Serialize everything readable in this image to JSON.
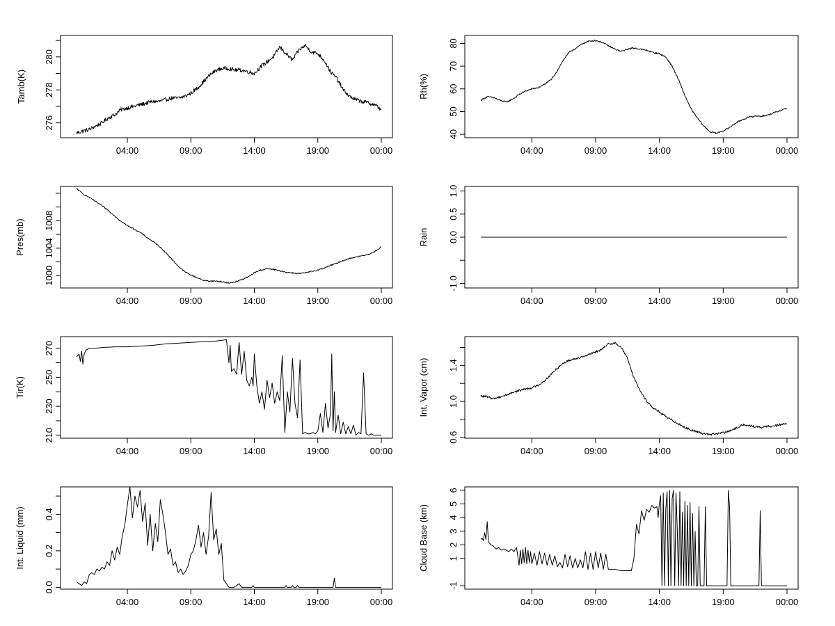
{
  "chart_data": [
    {
      "type": "line",
      "panel": "top-left",
      "ylabel": "Tamb(K)",
      "xlim": [
        0,
        24
      ],
      "ylim": [
        275.1,
        281.3
      ],
      "x_ticks": [
        4,
        9,
        14,
        19,
        24
      ],
      "x_tick_labels": [
        "04:00",
        "09:00",
        "14:00",
        "19:00",
        "00:00"
      ],
      "y_ticks": [
        276,
        277,
        278,
        279,
        280,
        281
      ],
      "y_tick_labels": [
        "276",
        "",
        "278",
        "",
        "280",
        ""
      ],
      "noise": 0.12,
      "x": [
        0,
        0.5,
        1,
        1.5,
        2,
        2.5,
        3,
        3.5,
        4,
        4.5,
        5,
        5.5,
        6,
        6.5,
        7,
        7.5,
        8,
        8.5,
        9,
        9.5,
        10,
        10.5,
        11,
        11.5,
        12,
        12.5,
        13,
        13.5,
        14,
        14.5,
        15,
        15.5,
        16,
        16.5,
        17,
        17.5,
        18,
        18.5,
        19,
        19.5,
        20,
        20.5,
        21,
        21.5,
        22,
        22.5,
        23,
        23.5,
        24
      ],
      "y": [
        275.4,
        275.5,
        275.6,
        275.8,
        276.0,
        276.3,
        276.5,
        276.8,
        276.9,
        277.0,
        277.1,
        277.2,
        277.3,
        277.3,
        277.4,
        277.5,
        277.5,
        277.6,
        277.8,
        278.1,
        278.5,
        278.9,
        279.2,
        279.3,
        279.3,
        279.2,
        279.2,
        279.1,
        279.0,
        279.4,
        279.7,
        280.0,
        280.6,
        280.2,
        279.8,
        280.4,
        280.7,
        280.3,
        280.2,
        279.8,
        279.1,
        278.7,
        278.0,
        277.6,
        277.4,
        277.3,
        277.2,
        277.1,
        276.8
      ]
    },
    {
      "type": "line",
      "panel": "top-right",
      "ylabel": "Rh(%)",
      "xlim": [
        0,
        24
      ],
      "ylim": [
        38.5,
        83.5
      ],
      "x_ticks": [
        4,
        9,
        14,
        19,
        24
      ],
      "x_tick_labels": [
        "04:00",
        "09:00",
        "14:00",
        "19:00",
        "00:00"
      ],
      "y_ticks": [
        40,
        50,
        60,
        70,
        80
      ],
      "y_tick_labels": [
        "40",
        "50",
        "60",
        "70",
        "80"
      ],
      "noise": 0.3,
      "x": [
        0,
        0.5,
        1,
        1.5,
        2,
        2.5,
        3,
        3.5,
        4,
        4.5,
        5,
        5.5,
        6,
        6.5,
        7,
        7.5,
        8,
        8.5,
        9,
        9.5,
        10,
        10.5,
        11,
        11.5,
        12,
        12.5,
        13,
        13.5,
        14,
        14.5,
        15,
        15.5,
        16,
        16.5,
        17,
        17.5,
        18,
        18.5,
        19,
        19.5,
        20,
        20.5,
        21,
        21.5,
        22,
        22.5,
        23,
        23.5,
        24
      ],
      "y": [
        55.0,
        56.5,
        56.2,
        55.0,
        54.2,
        55.5,
        57.5,
        59.0,
        60.0,
        60.5,
        62.0,
        64.0,
        68.0,
        73.0,
        76.5,
        78.0,
        80.0,
        81.0,
        81.3,
        80.5,
        79.0,
        77.5,
        76.5,
        77.5,
        78.0,
        77.5,
        77.0,
        76.0,
        75.5,
        74.0,
        70.0,
        64.0,
        57.0,
        51.0,
        47.0,
        43.5,
        41.0,
        40.5,
        41.5,
        43.0,
        45.0,
        46.5,
        47.5,
        48.0,
        48.0,
        48.5,
        49.5,
        50.5,
        51.5
      ]
    },
    {
      "type": "line",
      "panel": "middle-left-1",
      "ylabel": "Pres(mb)",
      "xlim": [
        0,
        24
      ],
      "ylim": [
        998.2,
        1013.0
      ],
      "x_ticks": [
        4,
        9,
        14,
        19,
        24
      ],
      "x_tick_labels": [
        "04:00",
        "09:00",
        "14:00",
        "19:00",
        "00:00"
      ],
      "y_ticks": [
        1000,
        1002,
        1004,
        1006,
        1008,
        1010,
        1012
      ],
      "y_tick_labels": [
        "1000",
        "",
        "1004",
        "",
        "1008",
        "",
        ""
      ],
      "noise": 0.08,
      "x": [
        0,
        0.5,
        1,
        1.5,
        2,
        2.5,
        3,
        3.5,
        4,
        4.5,
        5,
        5.5,
        6,
        6.5,
        7,
        7.5,
        8,
        8.5,
        9,
        9.5,
        10,
        10.5,
        11,
        11.5,
        12,
        12.5,
        13,
        13.5,
        14,
        14.5,
        15,
        15.5,
        16,
        16.5,
        17,
        17.5,
        18,
        18.5,
        19,
        19.5,
        20,
        20.5,
        21,
        21.5,
        22,
        22.5,
        23,
        23.5,
        24
      ],
      "y": [
        1012.7,
        1011.9,
        1011.4,
        1010.8,
        1010.2,
        1009.5,
        1008.7,
        1007.9,
        1007.3,
        1006.8,
        1006.3,
        1005.6,
        1005.0,
        1004.3,
        1003.4,
        1002.4,
        1001.4,
        1000.6,
        1000.1,
        999.7,
        999.3,
        999.2,
        999.2,
        999.1,
        998.9,
        999.1,
        999.4,
        999.8,
        1000.4,
        1000.8,
        1001.0,
        1000.9,
        1000.7,
        1000.5,
        1000.4,
        1000.3,
        1000.4,
        1000.6,
        1000.8,
        1001.1,
        1001.5,
        1001.8,
        1002.2,
        1002.5,
        1002.7,
        1002.9,
        1003.1,
        1003.5,
        1004.2
      ]
    },
    {
      "type": "line",
      "panel": "middle-right-1",
      "ylabel": "Rain",
      "xlim": [
        0,
        24
      ],
      "ylim": [
        -1.1,
        1.1
      ],
      "x_ticks": [
        4,
        9,
        14,
        19,
        24
      ],
      "x_tick_labels": [
        "04:00",
        "09:00",
        "14:00",
        "19:00",
        "00:00"
      ],
      "y_ticks": [
        -1.0,
        -0.5,
        0.0,
        0.5,
        1.0
      ],
      "y_tick_labels": [
        "-1.0",
        "",
        "0.0",
        "0.5",
        "1.0"
      ],
      "noise": 0,
      "x": [
        0,
        24
      ],
      "y": [
        0,
        0
      ]
    },
    {
      "type": "line",
      "panel": "middle-left-2",
      "ylabel": "Tir(K)",
      "xlim": [
        0,
        24
      ],
      "ylim": [
        208,
        278
      ],
      "x_ticks": [
        4,
        9,
        14,
        19,
        24
      ],
      "x_tick_labels": [
        "04:00",
        "09:00",
        "14:00",
        "19:00",
        "00:00"
      ],
      "y_ticks": [
        210,
        220,
        230,
        240,
        250,
        260,
        270
      ],
      "y_tick_labels": [
        "210",
        "",
        "230",
        "",
        "250",
        "",
        "270"
      ],
      "noise": 0,
      "x": [
        0,
        0.2,
        0.3,
        0.4,
        0.5,
        0.6,
        0.7,
        0.8,
        1.0,
        1.5,
        2,
        3,
        4,
        5,
        6,
        7,
        8,
        9,
        10,
        11,
        11.5,
        11.8,
        12.0,
        12.1,
        12.2,
        12.4,
        12.6,
        12.8,
        13.0,
        13.2,
        13.4,
        13.6,
        13.8,
        13.9,
        14.0,
        14.2,
        14.4,
        14.6,
        14.8,
        15.0,
        15.2,
        15.4,
        15.6,
        15.8,
        16.0,
        16.2,
        16.4,
        16.6,
        16.8,
        17.0,
        17.2,
        17.4,
        17.6,
        17.8,
        18.0,
        18.2,
        18.4,
        18.6,
        18.8,
        19.0,
        19.2,
        19.4,
        19.6,
        19.8,
        20.0,
        20.1,
        20.2,
        20.3,
        20.4,
        20.6,
        20.8,
        21.0,
        21.2,
        21.4,
        21.6,
        21.8,
        22.0,
        22.2,
        22.4,
        22.6,
        22.8,
        23.0,
        23.2,
        23.4,
        23.6,
        23.8,
        24.0
      ],
      "y": [
        264,
        266,
        261,
        268,
        259,
        266,
        268,
        269,
        270,
        270,
        270.5,
        271,
        271,
        271.5,
        272,
        273,
        273.5,
        274,
        274.5,
        275,
        275.5,
        276,
        260,
        272,
        254,
        256,
        252,
        274,
        252,
        268,
        248,
        244,
        250,
        244,
        266,
        244,
        232,
        240,
        228,
        248,
        236,
        246,
        232,
        240,
        234,
        265,
        212,
        240,
        226,
        263,
        232,
        222,
        262,
        211,
        212,
        211,
        211,
        212,
        211,
        213,
        225,
        212,
        232,
        215,
        225,
        266,
        213,
        240,
        212,
        224,
        211,
        219,
        211,
        216,
        211,
        217,
        210,
        212,
        211,
        253,
        211,
        210,
        211,
        210,
        210,
        210,
        210
      ]
    },
    {
      "type": "line",
      "panel": "middle-right-2",
      "ylabel": "Int. Vapor (cm)",
      "xlim": [
        0,
        24
      ],
      "ylim": [
        0.59,
        1.72
      ],
      "x_ticks": [
        4,
        9,
        14,
        19,
        24
      ],
      "x_tick_labels": [
        "04:00",
        "09:00",
        "14:00",
        "19:00",
        "00:00"
      ],
      "y_ticks": [
        0.6,
        0.8,
        1.0,
        1.2,
        1.4,
        1.6
      ],
      "y_tick_labels": [
        "0.6",
        "",
        "1.0",
        "",
        "1.4",
        ""
      ],
      "noise": 0.012,
      "x": [
        0,
        0.5,
        1,
        1.5,
        2,
        2.5,
        3,
        3.5,
        4,
        4.5,
        5,
        5.5,
        6,
        6.5,
        7,
        7.5,
        8,
        8.5,
        9,
        9.5,
        10,
        10.5,
        11,
        11.5,
        12,
        12.5,
        13,
        13.5,
        14,
        14.5,
        15,
        15.5,
        16,
        16.5,
        17,
        17.5,
        18,
        18.5,
        19,
        19.5,
        20,
        20.5,
        21,
        21.5,
        22,
        22.5,
        23,
        23.5,
        24
      ],
      "y": [
        1.06,
        1.05,
        1.03,
        1.05,
        1.07,
        1.1,
        1.12,
        1.14,
        1.15,
        1.18,
        1.23,
        1.3,
        1.37,
        1.43,
        1.46,
        1.48,
        1.5,
        1.52,
        1.55,
        1.58,
        1.64,
        1.65,
        1.6,
        1.48,
        1.26,
        1.12,
        1.0,
        0.93,
        0.88,
        0.83,
        0.79,
        0.75,
        0.71,
        0.68,
        0.66,
        0.64,
        0.63,
        0.64,
        0.65,
        0.67,
        0.7,
        0.74,
        0.73,
        0.72,
        0.71,
        0.72,
        0.73,
        0.74,
        0.75
      ]
    },
    {
      "type": "line",
      "panel": "bottom-left",
      "ylabel": "Int. Liquid (mm)",
      "xlim": [
        0,
        24
      ],
      "ylim": [
        -0.01,
        0.55
      ],
      "x_ticks": [
        4,
        9,
        14,
        19,
        24
      ],
      "x_tick_labels": [
        "04:00",
        "09:00",
        "14:00",
        "19:00",
        "00:00"
      ],
      "y_ticks": [
        0.0,
        0.1,
        0.2,
        0.3,
        0.4,
        0.5
      ],
      "y_tick_labels": [
        "0.0",
        "",
        "0.2",
        "",
        "0.4",
        ""
      ],
      "noise": 0,
      "x": [
        0,
        0.2,
        0.4,
        0.6,
        0.8,
        1.0,
        1.2,
        1.4,
        1.6,
        1.8,
        2.0,
        2.2,
        2.4,
        2.6,
        2.8,
        3.0,
        3.2,
        3.4,
        3.6,
        3.8,
        4.0,
        4.2,
        4.4,
        4.6,
        4.8,
        5.0,
        5.2,
        5.4,
        5.6,
        5.8,
        6.0,
        6.2,
        6.4,
        6.6,
        6.8,
        7.0,
        7.2,
        7.4,
        7.6,
        7.8,
        8.0,
        8.2,
        8.4,
        8.6,
        8.8,
        9.0,
        9.2,
        9.4,
        9.6,
        9.8,
        10.0,
        10.2,
        10.4,
        10.6,
        10.8,
        11.0,
        11.2,
        11.4,
        11.6,
        11.8,
        12.0,
        12.4,
        12.6,
        12.8,
        13.0,
        13.8,
        13.9,
        14.0,
        16.4,
        16.5,
        16.6,
        16.9,
        17.0,
        17.1,
        17.3,
        17.4,
        17.5,
        20.2,
        20.3,
        20.4,
        24.0
      ],
      "y": [
        0.03,
        0.02,
        0.01,
        0.03,
        0.02,
        0.07,
        0.08,
        0.07,
        0.1,
        0.09,
        0.11,
        0.1,
        0.14,
        0.12,
        0.2,
        0.15,
        0.22,
        0.18,
        0.28,
        0.34,
        0.45,
        0.55,
        0.38,
        0.5,
        0.44,
        0.53,
        0.36,
        0.46,
        0.23,
        0.4,
        0.2,
        0.35,
        0.25,
        0.48,
        0.4,
        0.3,
        0.18,
        0.21,
        0.12,
        0.14,
        0.08,
        0.1,
        0.07,
        0.09,
        0.12,
        0.18,
        0.2,
        0.26,
        0.34,
        0.22,
        0.3,
        0.18,
        0.28,
        0.52,
        0.26,
        0.32,
        0.18,
        0.24,
        0.04,
        0.02,
        0.0,
        0.0,
        0.01,
        0.02,
        0.0,
        0.0,
        0.01,
        0.0,
        0.0,
        0.01,
        0.0,
        0.0,
        0.01,
        0.0,
        0.0,
        0.01,
        0.0,
        0.0,
        0.05,
        0.0,
        0.0
      ]
    },
    {
      "type": "line",
      "panel": "bottom-right",
      "ylabel": "Cloud Base (km)",
      "xlim": [
        0,
        24
      ],
      "ylim": [
        -1.25,
        6.25
      ],
      "x_ticks": [
        4,
        9,
        14,
        19,
        24
      ],
      "x_tick_labels": [
        "04:00",
        "09:00",
        "14:00",
        "19:00",
        "00:00"
      ],
      "y_ticks": [
        -1,
        1,
        2,
        3,
        4,
        5,
        6
      ],
      "y_tick_labels": [
        "-1",
        "1",
        "2",
        "3",
        "4",
        "5",
        "6"
      ],
      "noise": 0,
      "x": [
        0,
        0.1,
        0.2,
        0.3,
        0.4,
        0.5,
        0.6,
        0.8,
        1.0,
        1.2,
        1.4,
        1.6,
        1.8,
        2.0,
        2.2,
        2.4,
        2.6,
        2.8,
        3.0,
        3.1,
        3.2,
        3.3,
        3.4,
        3.5,
        3.6,
        3.7,
        3.8,
        3.9,
        4.0,
        4.2,
        4.4,
        4.6,
        4.8,
        5.0,
        5.2,
        5.4,
        5.6,
        5.8,
        6.0,
        6.2,
        6.4,
        6.6,
        6.8,
        7.0,
        7.2,
        7.4,
        7.6,
        7.8,
        8.0,
        8.2,
        8.4,
        8.6,
        8.8,
        9.0,
        9.2,
        9.4,
        9.6,
        9.8,
        10.0,
        10.5,
        11.0,
        11.5,
        11.8,
        12.0,
        12.2,
        12.4,
        12.6,
        12.8,
        13.0,
        13.2,
        13.4,
        13.6,
        13.8,
        13.9,
        14.0,
        14.1,
        14.2,
        14.3,
        14.4,
        14.5,
        14.6,
        14.7,
        14.8,
        14.9,
        15.0,
        15.1,
        15.2,
        15.3,
        15.4,
        15.5,
        15.6,
        15.7,
        15.8,
        15.9,
        16.0,
        16.1,
        16.2,
        16.3,
        16.4,
        16.5,
        16.6,
        16.7,
        16.8,
        16.9,
        17.0,
        17.1,
        17.2,
        17.3,
        17.4,
        17.5,
        17.6,
        17.7,
        17.8,
        19.3,
        19.4,
        19.5,
        19.6,
        19.7,
        19.8,
        21.8,
        21.9,
        22.0,
        22.1,
        24.0
      ],
      "y": [
        2.4,
        2.5,
        2.3,
        2.9,
        2.4,
        3.7,
        2.2,
        2.0,
        1.9,
        1.7,
        1.8,
        1.6,
        1.7,
        1.6,
        1.5,
        1.7,
        1.5,
        1.8,
        0.5,
        1.6,
        0.6,
        1.7,
        0.7,
        1.8,
        0.6,
        1.6,
        0.7,
        1.5,
        0.6,
        1.4,
        0.5,
        1.5,
        0.6,
        1.4,
        0.5,
        1.3,
        0.5,
        1.2,
        0.4,
        0.7,
        0.3,
        1.3,
        0.4,
        1.2,
        0.3,
        1.0,
        0.3,
        0.9,
        0.3,
        1.5,
        0.2,
        1.4,
        0.2,
        1.5,
        0.3,
        1.4,
        0.2,
        1.3,
        0.2,
        0.2,
        0.1,
        0.1,
        0.1,
        1.0,
        3.5,
        2.8,
        4.5,
        3.8,
        4.6,
        4.4,
        4.9,
        4.7,
        4.8,
        4.0,
        5.1,
        5.6,
        -1.0,
        5.8,
        -1.0,
        4.6,
        5.9,
        -1.0,
        6.0,
        -1.0,
        5.4,
        6.0,
        -1.0,
        5.8,
        3.2,
        -1.0,
        5.9,
        -1.0,
        4.4,
        -1.0,
        5.2,
        -1.0,
        4.9,
        -1.0,
        5.1,
        -1.0,
        4.3,
        -1.0,
        3.0,
        -1.0,
        -1.0,
        4.8,
        -1.0,
        -1.0,
        -1.0,
        -1.0,
        4.8,
        -1.0,
        -1.0,
        -1.0,
        6.0,
        4.8,
        -1.0,
        -1.0,
        -1.0,
        -1.0,
        4.5,
        -1.0,
        -1.0,
        -1.0
      ]
    }
  ]
}
